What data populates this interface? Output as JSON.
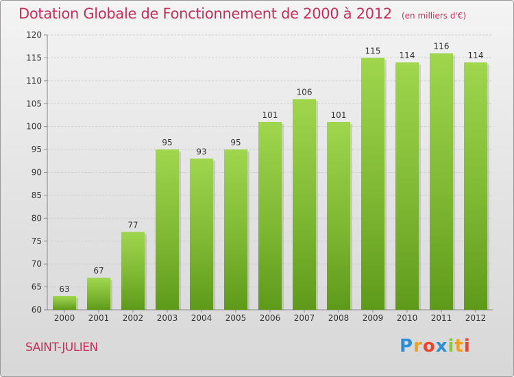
{
  "header": {
    "title": "Dotation Globale de Fonctionnement de 2000 à 2012",
    "subtitle": "(en milliers d'€)"
  },
  "footer": {
    "place": "SAINT-JULIEN",
    "logo_letters": [
      "P",
      "r",
      "o",
      "x",
      "i",
      "t",
      "i"
    ],
    "logo_colors": [
      "#2a8fd6",
      "#f0a01e",
      "#e8452c",
      "#2a8fd6",
      "#8cc63f",
      "#f0a01e",
      "#e8452c"
    ]
  },
  "colors": {
    "bar": "#7fb833",
    "bar_light": "#9fd64e",
    "bar_dark": "#5e9a1a",
    "title": "#c0305a"
  },
  "chart_data": {
    "type": "bar",
    "categories": [
      "2000",
      "2001",
      "2002",
      "2003",
      "2004",
      "2005",
      "2006",
      "2007",
      "2008",
      "2009",
      "2010",
      "2011",
      "2012"
    ],
    "values": [
      63,
      67,
      77,
      95,
      93,
      95,
      101,
      106,
      101,
      115,
      114,
      116,
      114
    ],
    "ylim": [
      60,
      120
    ],
    "yticks": [
      60,
      65,
      70,
      75,
      80,
      85,
      90,
      95,
      100,
      105,
      110,
      115,
      120
    ],
    "grid": true
  }
}
